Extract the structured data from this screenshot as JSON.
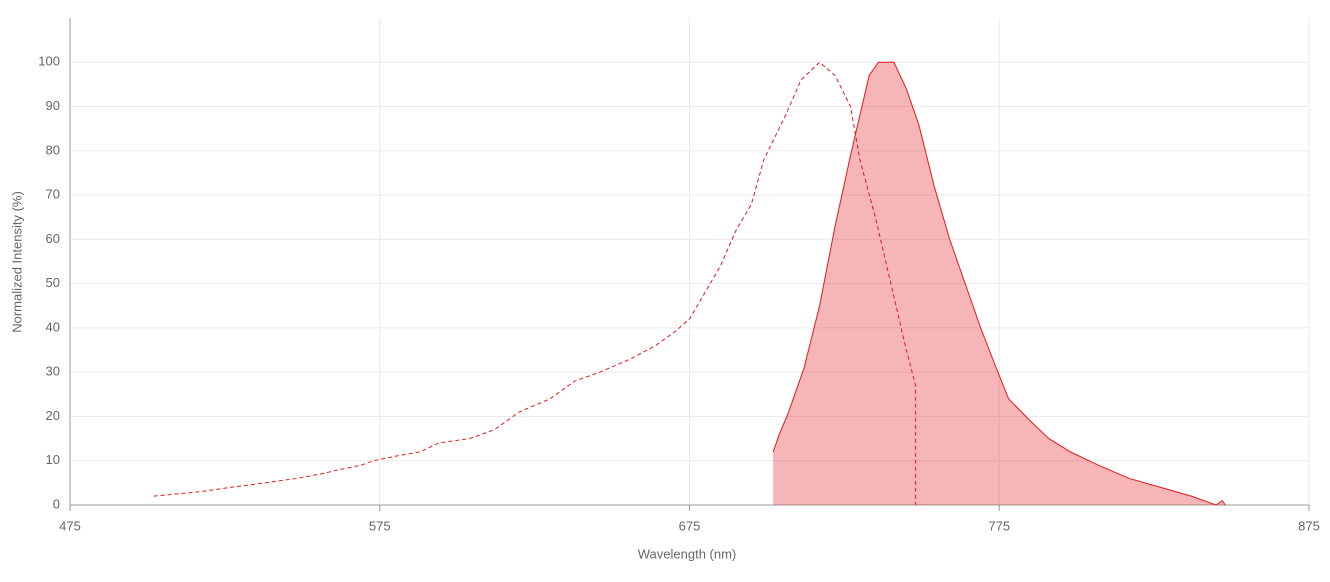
{
  "chart_data": {
    "type": "line",
    "xlabel": "Wavelength (nm)",
    "ylabel": "Normalized Intensity (%)",
    "xlim": [
      475,
      875
    ],
    "xticks": [
      475,
      575,
      675,
      775,
      875
    ],
    "ylim": [
      0,
      110
    ],
    "yticks": [
      0,
      10,
      20,
      30,
      40,
      50,
      60,
      70,
      80,
      90,
      100
    ],
    "grid": true,
    "series": [
      {
        "color": "#e31a1c",
        "dashed": true,
        "fill": false,
        "x": [
          502,
          517,
          527,
          538,
          548,
          556,
          562,
          569,
          573,
          580,
          588,
          594,
          604,
          612,
          620,
          630,
          638,
          646,
          656,
          664,
          670,
          675,
          680,
          685,
          690,
          695,
          699,
          706,
          711,
          717,
          722,
          727,
          730,
          735,
          740,
          745,
          748,
          748
        ],
        "values": [
          2,
          3,
          4,
          5,
          6,
          7,
          8,
          9,
          10,
          11,
          12,
          14,
          15,
          17,
          21,
          24,
          28,
          30,
          33,
          36,
          39,
          42,
          48,
          54,
          62,
          68,
          78,
          88,
          96,
          100,
          97,
          90,
          78,
          65,
          50,
          35,
          27,
          0
        ]
      },
      {
        "color": "#e31a1c",
        "dashed": false,
        "fill": true,
        "x": [
          702,
          704,
          707,
          712,
          717,
          722,
          727,
          730,
          733,
          736,
          741,
          745,
          749,
          754,
          759,
          764,
          769,
          774,
          778,
          785,
          791,
          798,
          807,
          817,
          827,
          837,
          845,
          847,
          848
        ],
        "values": [
          12,
          16,
          21,
          31,
          45,
          63,
          79,
          88,
          97,
          100,
          100,
          94,
          86,
          72,
          60,
          50,
          40,
          31,
          24,
          19,
          15,
          12,
          9,
          6,
          4,
          2,
          0,
          1,
          0
        ]
      }
    ]
  }
}
